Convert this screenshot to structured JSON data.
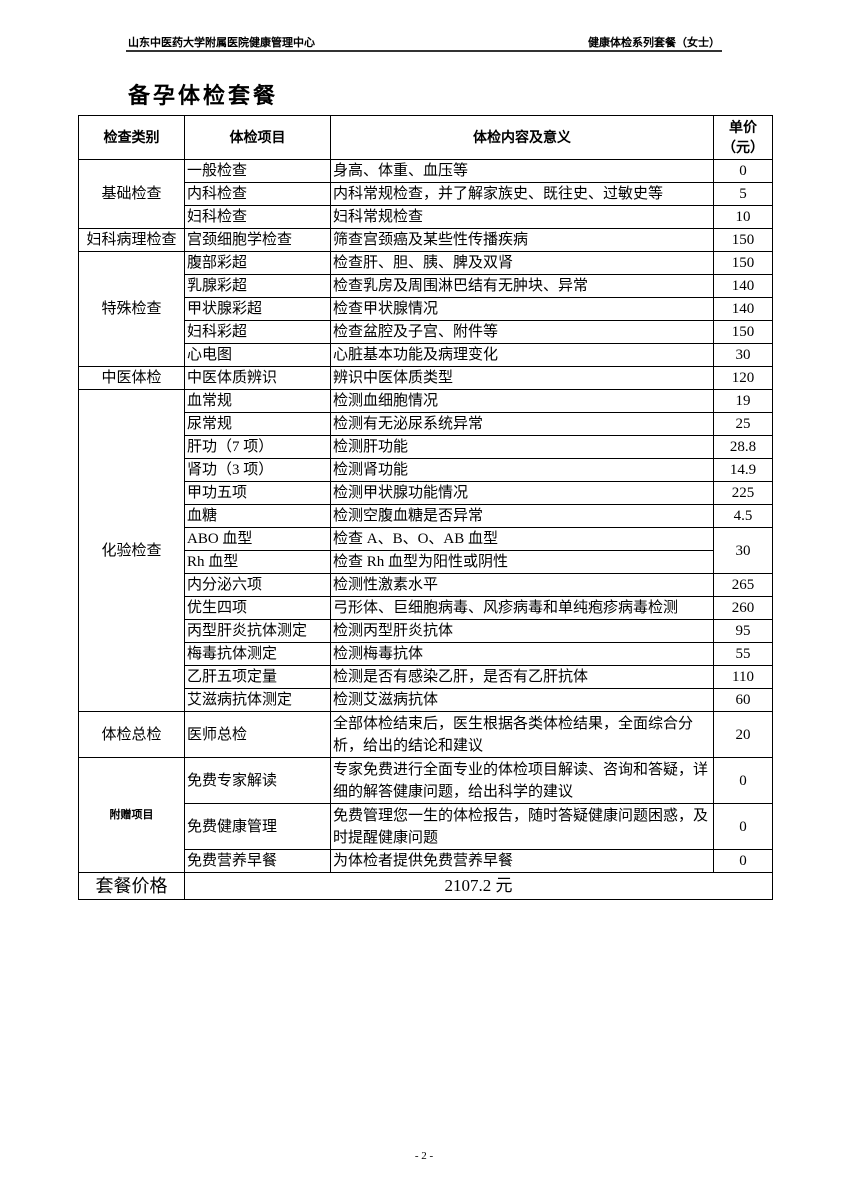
{
  "header": {
    "left": "山东中医药大学附属医院健康管理中心",
    "right": "健康体检系列套餐（女士）"
  },
  "title": "备孕体检套餐",
  "columns": [
    "检查类别",
    "体检项目",
    "体检内容及意义",
    "单价（元）"
  ],
  "groups": [
    {
      "category": "基础检查",
      "rows": [
        {
          "item": "一般检查",
          "desc": "身高、体重、血压等",
          "price": "0"
        },
        {
          "item": "内科检查",
          "desc": "内科常规检查，并了解家族史、既往史、过敏史等",
          "price": "5"
        },
        {
          "item": "妇科检查",
          "desc": "妇科常规检查",
          "price": "10"
        }
      ]
    },
    {
      "category": "妇科病理检查",
      "rows": [
        {
          "item": "宫颈细胞学检查",
          "desc": "筛查宫颈癌及某些性传播疾病",
          "price": "150"
        }
      ]
    },
    {
      "category": "特殊检查",
      "rows": [
        {
          "item": "腹部彩超",
          "desc": "检查肝、胆、胰、脾及双肾",
          "price": "150"
        },
        {
          "item": "乳腺彩超",
          "desc": "检查乳房及周围淋巴结有无肿块、异常",
          "price": "140"
        },
        {
          "item": "甲状腺彩超",
          "desc": "检查甲状腺情况",
          "price": "140"
        },
        {
          "item": "妇科彩超",
          "desc": "检查盆腔及子宫、附件等",
          "price": "150"
        },
        {
          "item": "心电图",
          "desc": "心脏基本功能及病理变化",
          "price": "30"
        }
      ]
    },
    {
      "category": "中医体检",
      "rows": [
        {
          "item": "中医体质辨识",
          "desc": "辨识中医体质类型",
          "price": "120"
        }
      ]
    },
    {
      "category": "化验检查",
      "rows": [
        {
          "item": "血常规",
          "desc": "检测血细胞情况",
          "price": "19"
        },
        {
          "item": "尿常规",
          "desc": "检测有无泌尿系统异常",
          "price": "25"
        },
        {
          "item": "肝功（7 项）",
          "desc": "检测肝功能",
          "price": "28.8"
        },
        {
          "item": "肾功（3 项）",
          "desc": "检测肾功能",
          "price": "14.9"
        },
        {
          "item": "甲功五项",
          "desc": "检测甲状腺功能情况",
          "price": "225"
        },
        {
          "item": "血糖",
          "desc": "检测空腹血糖是否异常",
          "price": "4.5"
        },
        {
          "item": "ABO 血型",
          "desc": "检查 A、B、O、AB 血型",
          "price": "30",
          "shared_price": true
        },
        {
          "item": "Rh 血型",
          "desc": "检查 Rh 血型为阳性或阴性",
          "price": null
        },
        {
          "item": "内分泌六项",
          "desc": "检测性激素水平",
          "price": "265"
        },
        {
          "item": "优生四项",
          "desc": "弓形体、巨细胞病毒、风疹病毒和单纯疱疹病毒检测",
          "price": "260"
        },
        {
          "item": "丙型肝炎抗体测定",
          "desc": "检测丙型肝炎抗体",
          "price": "95"
        },
        {
          "item": "梅毒抗体测定",
          "desc": "检测梅毒抗体",
          "price": "55"
        },
        {
          "item": "乙肝五项定量",
          "desc": "检测是否有感染乙肝，是否有乙肝抗体",
          "price": "110"
        },
        {
          "item": "艾滋病抗体测定",
          "desc": "检测艾滋病抗体",
          "price": "60"
        }
      ]
    },
    {
      "category": "体检总检",
      "rows": [
        {
          "item": "医师总检",
          "desc": "全部体检结束后，医生根据各类体检结果，全面综合分析，给出的结论和建议",
          "price": "20"
        }
      ]
    },
    {
      "category": "附赠项目",
      "bold": true,
      "rows": [
        {
          "item": "免费专家解读",
          "desc": "专家免费进行全面专业的体检项目解读、咨询和答疑，详细的解答健康问题，给出科学的建议",
          "price": "0"
        },
        {
          "item": "免费健康管理",
          "desc": "免费管理您一生的体检报告，随时答疑健康问题困惑，及时提醒健康问题",
          "price": "0"
        },
        {
          "item": "免费营养早餐",
          "desc": "为体检者提供免费营养早餐",
          "price": "0"
        }
      ]
    }
  ],
  "total": {
    "label": "套餐价格",
    "value": "2107.2 元"
  },
  "footer": {
    "page": "- 2 -"
  }
}
